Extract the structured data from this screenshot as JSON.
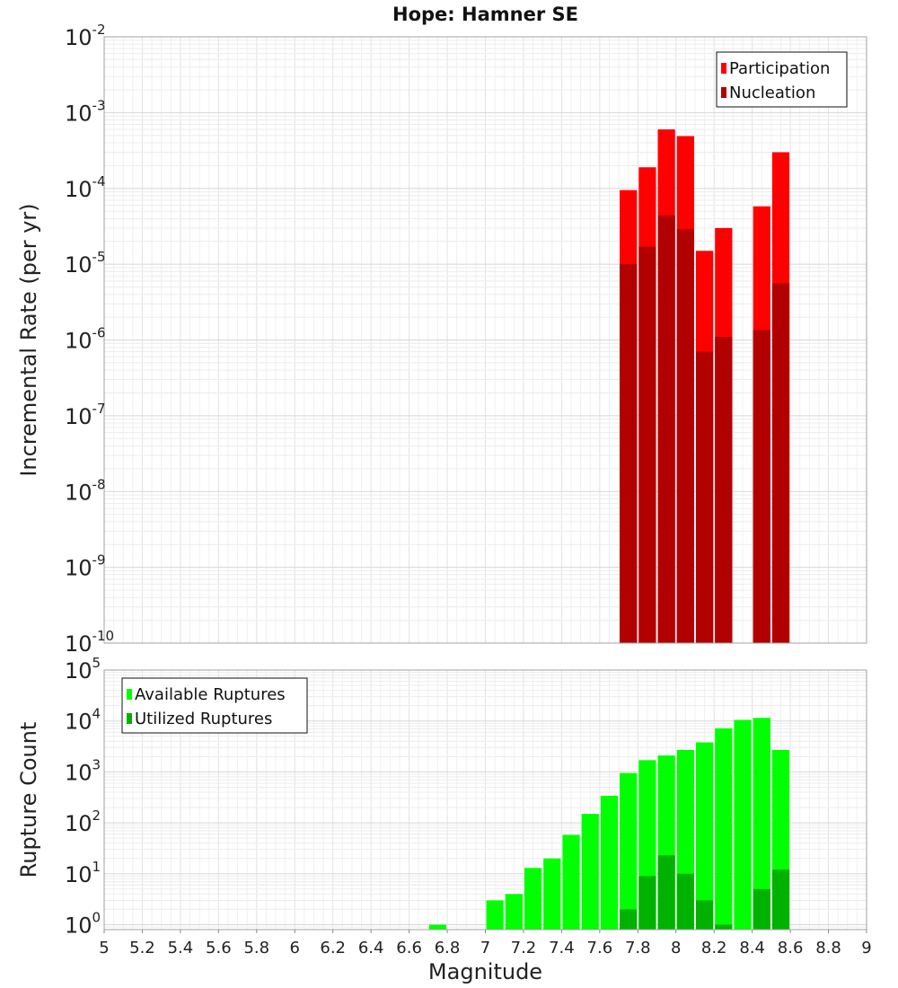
{
  "chart_data": [
    {
      "type": "bar",
      "title": "Hope: Hamner SE",
      "xlabel": "",
      "ylabel": "Incremental Rate (per yr)",
      "yscale": "log",
      "xlim": [
        5,
        9
      ],
      "ylim": [
        1e-10,
        0.01
      ],
      "y_ticks": [
        {
          "base": "10",
          "exp": "-10",
          "value": 1e-10
        },
        {
          "base": "10",
          "exp": "-9",
          "value": 1e-09
        },
        {
          "base": "10",
          "exp": "-8",
          "value": 1e-08
        },
        {
          "base": "10",
          "exp": "-7",
          "value": 1e-07
        },
        {
          "base": "10",
          "exp": "-6",
          "value": 1e-06
        },
        {
          "base": "10",
          "exp": "-5",
          "value": 1e-05
        },
        {
          "base": "10",
          "exp": "-4",
          "value": 0.0001
        },
        {
          "base": "10",
          "exp": "-3",
          "value": 0.001
        },
        {
          "base": "10",
          "exp": "-2",
          "value": 0.01
        }
      ],
      "grid": true,
      "legend_position": "top-right",
      "bar_width": 0.1,
      "series": [
        {
          "name": "Participation",
          "color": "#ff0000",
          "x": [
            7.75,
            7.85,
            7.95,
            8.05,
            8.15,
            8.25,
            8.45,
            8.55
          ],
          "values": [
            9.5e-05,
            0.00019,
            0.0006,
            0.00049,
            1.5e-05,
            3e-05,
            5.8e-05,
            0.0003
          ]
        },
        {
          "name": "Nucleation",
          "color": "#b20000",
          "x": [
            7.75,
            7.85,
            7.95,
            8.05,
            8.15,
            8.25,
            8.45,
            8.55
          ],
          "values": [
            1e-05,
            1.7e-05,
            4.4e-05,
            2.9e-05,
            7e-07,
            1.1e-06,
            1.35e-06,
            5.6e-06
          ]
        }
      ]
    },
    {
      "type": "bar",
      "title": "",
      "xlabel": "Magnitude",
      "ylabel": "Rupture Count",
      "yscale": "log",
      "xlim": [
        5,
        9
      ],
      "ylim": [
        0.8,
        100000.0
      ],
      "x_ticks": [
        "5",
        "5.2",
        "5.4",
        "5.6",
        "5.8",
        "6",
        "6.2",
        "6.4",
        "6.6",
        "6.8",
        "7",
        "7.2",
        "7.4",
        "7.6",
        "7.8",
        "8",
        "8.2",
        "8.4",
        "8.6",
        "8.8",
        "9"
      ],
      "x_tick_values": [
        5,
        5.2,
        5.4,
        5.6,
        5.8,
        6,
        6.2,
        6.4,
        6.6,
        6.8,
        7,
        7.2,
        7.4,
        7.6,
        7.8,
        8,
        8.2,
        8.4,
        8.6,
        8.8,
        9
      ],
      "y_ticks": [
        {
          "base": "10",
          "exp": "0",
          "value": 1
        },
        {
          "base": "10",
          "exp": "1",
          "value": 10
        },
        {
          "base": "10",
          "exp": "2",
          "value": 100
        },
        {
          "base": "10",
          "exp": "3",
          "value": 1000
        },
        {
          "base": "10",
          "exp": "4",
          "value": 10000
        },
        {
          "base": "10",
          "exp": "5",
          "value": 100000
        }
      ],
      "grid": true,
      "legend_position": "top-left",
      "bar_width": 0.1,
      "series": [
        {
          "name": "Available Ruptures",
          "color": "#00ff00",
          "x": [
            6.75,
            7.05,
            7.15,
            7.25,
            7.35,
            7.45,
            7.55,
            7.65,
            7.75,
            7.85,
            7.95,
            8.05,
            8.15,
            8.25,
            8.35,
            8.45,
            8.55
          ],
          "values": [
            1,
            3,
            4,
            13,
            20,
            58,
            150,
            340,
            950,
            1700,
            2100,
            2700,
            3800,
            7200,
            10500,
            11500,
            2700
          ]
        },
        {
          "name": "Utilized Ruptures",
          "color": "#00b200",
          "x": [
            7.75,
            7.85,
            7.95,
            8.05,
            8.15,
            8.25,
            8.45,
            8.55
          ],
          "values": [
            2,
            9,
            23,
            10,
            3,
            1,
            5,
            12
          ]
        }
      ]
    }
  ]
}
